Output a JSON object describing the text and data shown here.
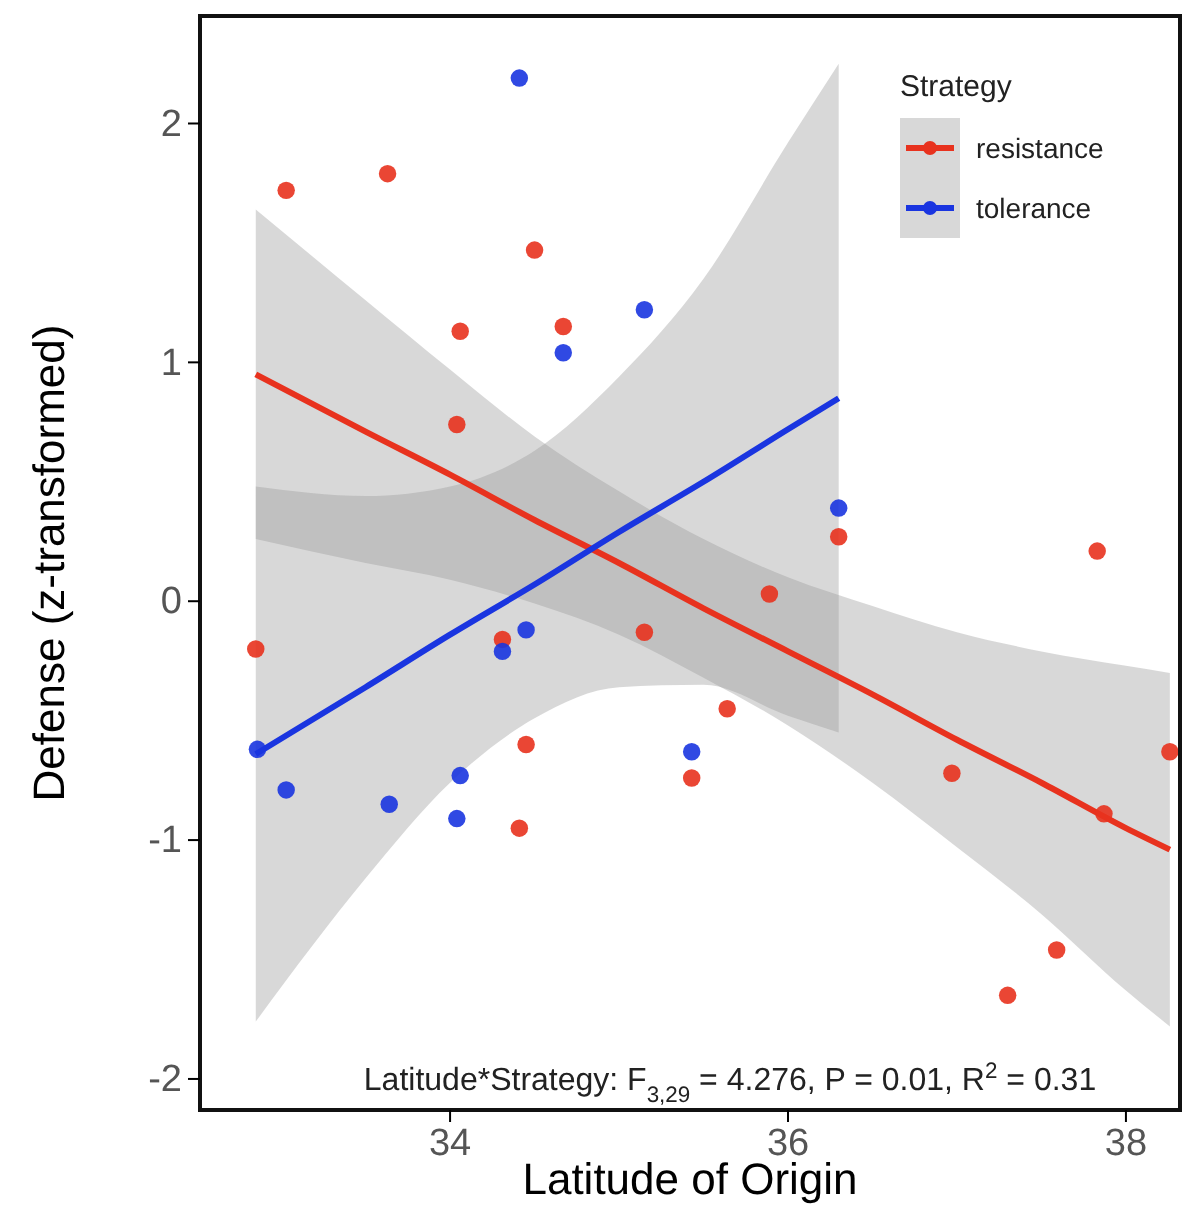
{
  "chart_data": {
    "type": "scatter",
    "xlabel": "Latitude of Origin",
    "ylabel": "Defense (z-transformed)",
    "legend_title": "Strategy",
    "legend": "top right",
    "grid": false,
    "xlim": [
      32.52,
      38.32
    ],
    "ylim": [
      -2.13,
      2.45
    ],
    "xticks": [
      34,
      36,
      38
    ],
    "yticks": [
      -2,
      -1,
      0,
      1,
      2
    ],
    "annotations": [
      "Latitude*Strategy: F$_{3,29}$ = 4.276, P = 0.01, R$^{2}$ = 0.31"
    ],
    "series": [
      {
        "type": "line",
        "color": "#e8321e",
        "x": [
          32.85,
          33.5,
          34,
          34.5,
          35,
          35.5,
          36,
          36.5,
          37,
          37.5,
          38,
          38.26
        ],
        "values": [
          0.95,
          0.71,
          0.53,
          0.34,
          0.16,
          -0.03,
          -0.21,
          -0.39,
          -0.58,
          -0.76,
          -0.95,
          -1.04
        ],
        "lower": [
          0.26,
          0.16,
          0.09,
          -0.01,
          -0.14,
          -0.32,
          -0.52,
          -0.76,
          -1.03,
          -1.31,
          -1.63,
          -1.78
        ],
        "upper": [
          1.64,
          1.26,
          0.97,
          0.69,
          0.46,
          0.26,
          0.1,
          -0.02,
          -0.13,
          -0.21,
          -0.27,
          -0.3
        ]
      },
      {
        "type": "line",
        "color": "#1a35e0",
        "x": [
          32.85,
          33.5,
          34,
          34.5,
          35,
          35.5,
          36,
          36.3
        ],
        "values": [
          -0.64,
          -0.36,
          -0.14,
          0.07,
          0.29,
          0.5,
          0.72,
          0.85
        ],
        "lower": [
          -1.76,
          -1.16,
          -0.76,
          -0.49,
          -0.36,
          -0.35,
          -0.48,
          -0.55
        ],
        "upper": [
          0.48,
          0.44,
          0.48,
          0.63,
          0.94,
          1.35,
          1.92,
          2.25
        ]
      },
      {
        "marker": "circle",
        "name": "resistance",
        "color": "#e8321e",
        "x": [
          32.85,
          33.03,
          33.63,
          34.06,
          34.04,
          34.5,
          34.67,
          34.31,
          34.45,
          34.41,
          35.15,
          35.43,
          35.64,
          35.89,
          36.3,
          37.83,
          36.97,
          37.3,
          37.59,
          37.87,
          38.26
        ],
        "values": [
          -0.2,
          1.72,
          1.79,
          1.13,
          0.74,
          1.47,
          1.15,
          -0.16,
          -0.6,
          -0.95,
          -0.13,
          -0.74,
          -0.45,
          0.03,
          0.27,
          0.21,
          -0.72,
          -1.65,
          -1.46,
          -0.89,
          -0.63
        ]
      },
      {
        "marker": "circle",
        "name": "tolerance",
        "color": "#1a35e0",
        "x": [
          34.41,
          35.15,
          34.67,
          36.3,
          34.31,
          34.45,
          32.86,
          33.03,
          33.64,
          34.06,
          34.04,
          35.43
        ],
        "values": [
          2.19,
          1.22,
          1.04,
          0.39,
          -0.21,
          -0.12,
          -0.62,
          -0.79,
          -0.85,
          -0.73,
          -0.91,
          -0.63
        ]
      }
    ]
  }
}
